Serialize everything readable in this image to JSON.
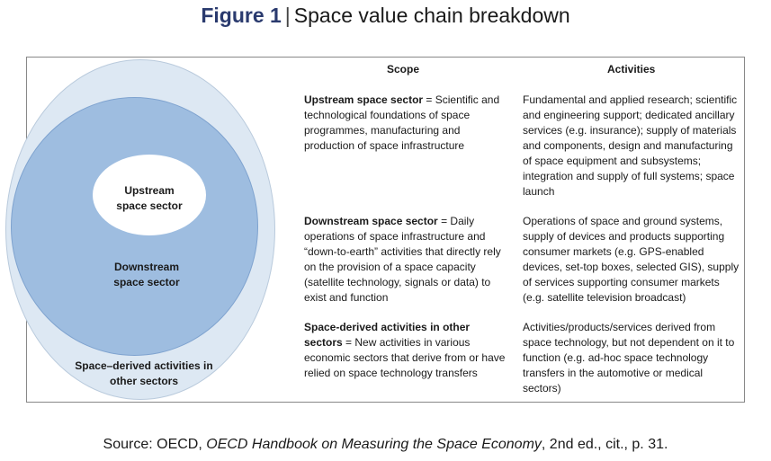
{
  "figure": {
    "number": "Figure 1",
    "separator": "|",
    "title": "Space value chain breakdown"
  },
  "diagram": {
    "inner_label": [
      "Upstream",
      "space sector"
    ],
    "middle_label": [
      "Downstream",
      "space sector"
    ],
    "outer_label": [
      "Space–derived activities in",
      "other sectors"
    ]
  },
  "table": {
    "headers": {
      "scope": "Scope",
      "activities": "Activities"
    },
    "rows": [
      {
        "scope_bold": "Upstream space sector",
        "scope_text": " = Scientific and technological foundations of space programmes, manufacturing and production of space infrastructure",
        "activities": "Fundamental and applied research; scientific and engineering support; dedicated ancillary services (e.g. insurance); supply of materials and components, design and manufacturing of space equipment and subsystems; integration and supply of full systems; space launch"
      },
      {
        "scope_bold": "Downstream space sector",
        "scope_text": " = Daily operations of space infrastructure and “down-to-earth” activities that directly rely on the provision of a space capacity (satellite technology, signals or data) to exist and function",
        "activities": "Operations of space and ground systems, supply of devices and products supporting consumer markets (e.g. GPS-enabled devices, set-top boxes, selected GIS), supply of services supporting consumer markets (e.g. satellite television broadcast)"
      },
      {
        "scope_bold": "Space-derived activities in other sectors",
        "scope_text": " = New activities in various economic sectors that derive from or have relied on space technology transfers",
        "activities": "Activities/products/services derived from space technology, but not dependent on it to function (e.g. ad-hoc space technology transfers in the automotive or medical sectors)"
      }
    ]
  },
  "source": {
    "prefix": "Source: OECD, ",
    "book": "OECD Handbook on Measuring the Space Economy",
    "suffix": ", 2nd ed., cit., p. 31."
  }
}
